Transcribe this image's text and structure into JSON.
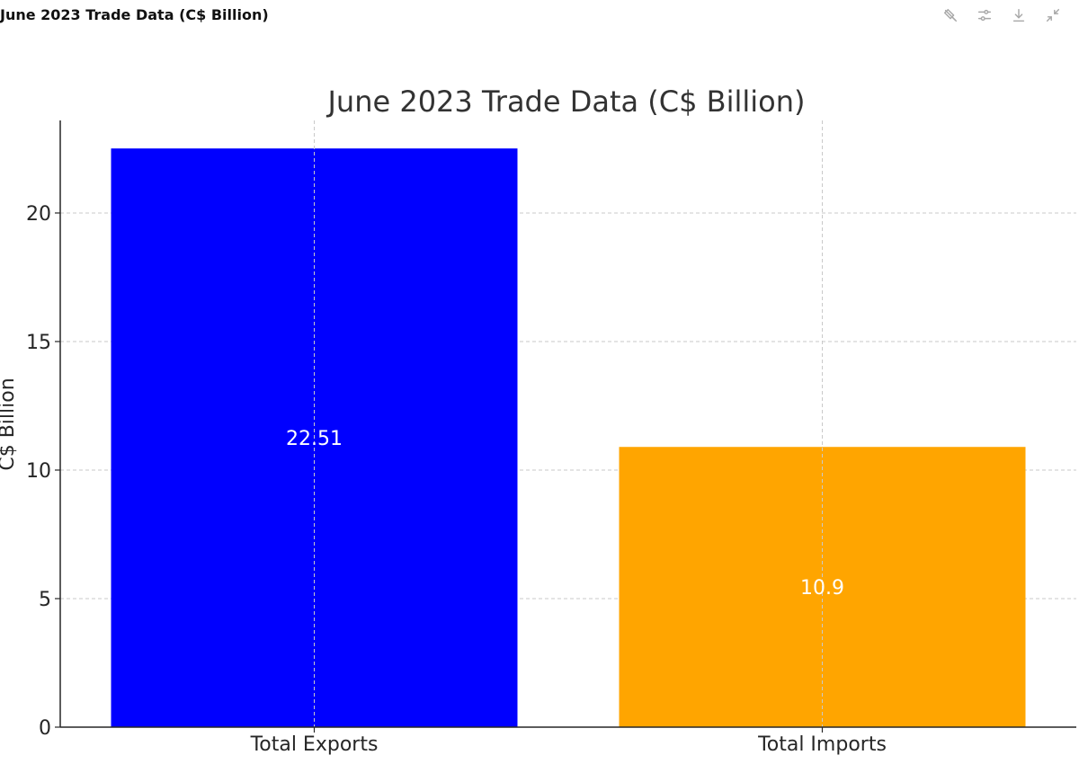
{
  "header": {
    "title": "June 2023 Trade Data (C$ Billion)"
  },
  "toolbar": {
    "buttons": [
      {
        "icon": "magic-wand-off-icon"
      },
      {
        "icon": "sliders-icon"
      },
      {
        "icon": "download-icon"
      },
      {
        "icon": "collapse-icon"
      }
    ]
  },
  "chart_data": {
    "type": "bar",
    "title": "June 2023 Trade Data (C$ Billion)",
    "xlabel": "",
    "ylabel": "C$ Billion",
    "categories": [
      "Total Exports",
      "Total Imports"
    ],
    "values": [
      22.51,
      10.9
    ],
    "value_labels": [
      "22.51",
      "10.9"
    ],
    "colors": [
      "#0000ff",
      "#ffa500"
    ],
    "ylim": [
      0,
      23.6
    ],
    "yticks": [
      0,
      5,
      10,
      15,
      20
    ],
    "ytick_labels": [
      "0",
      "5",
      "10",
      "15",
      "20"
    ],
    "grid": true,
    "legend": "none"
  }
}
